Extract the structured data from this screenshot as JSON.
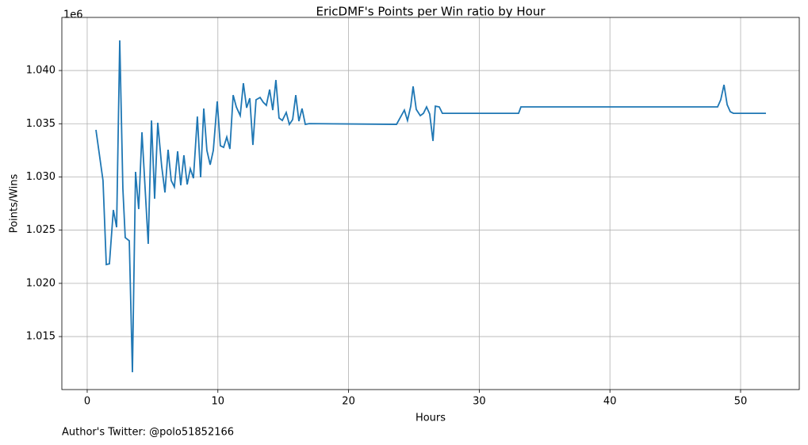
{
  "chart_data": {
    "type": "line",
    "title": "EricDMF's Points per Win ratio by Hour",
    "xlabel": "Hours",
    "ylabel": "Points/Wins",
    "y_offset_text": "1e6",
    "footnote": "Author's Twitter: @polo51852166",
    "grid": true,
    "xlim": [
      -1.94,
      54.49
    ],
    "ylim": [
      1.01002,
      1.04499
    ],
    "xticks": [
      0,
      10,
      20,
      30,
      40,
      50
    ],
    "yticks": [
      {
        "value": 1.015,
        "label": "1.015"
      },
      {
        "value": 1.02,
        "label": "1.020"
      },
      {
        "value": 1.025,
        "label": "1.025"
      },
      {
        "value": 1.03,
        "label": "1.030"
      },
      {
        "value": 1.035,
        "label": "1.035"
      },
      {
        "value": 1.04,
        "label": "1.040"
      }
    ],
    "x": [
      0.67,
      1.21,
      1.46,
      1.7,
      2.0,
      2.25,
      2.49,
      2.73,
      2.91,
      3.22,
      3.46,
      3.7,
      3.94,
      4.19,
      4.67,
      4.92,
      5.16,
      5.4,
      5.7,
      5.95,
      6.19,
      6.43,
      6.67,
      6.92,
      7.16,
      7.4,
      7.65,
      7.89,
      8.13,
      8.43,
      8.68,
      8.92,
      9.16,
      9.41,
      9.65,
      9.95,
      10.19,
      10.44,
      10.68,
      10.92,
      11.17,
      11.41,
      11.71,
      11.95,
      12.2,
      12.44,
      12.68,
      12.92,
      13.23,
      13.47,
      13.71,
      13.96,
      14.2,
      14.44,
      14.68,
      14.93,
      15.23,
      15.47,
      15.72,
      15.96,
      16.2,
      16.44,
      16.69,
      16.99,
      23.67,
      23.97,
      24.27,
      24.51,
      24.76,
      24.94,
      25.18,
      25.49,
      25.73,
      25.97,
      26.21,
      26.46,
      26.64,
      26.94,
      27.18,
      33.01,
      33.19,
      48.24,
      48.48,
      48.73,
      48.97,
      49.21,
      49.45,
      51.94
    ],
    "series": [
      {
        "name": "Points/Wins",
        "color": "#1f77b4",
        "values": [
          1.03442,
          1.02966,
          1.02177,
          1.02184,
          1.0269,
          1.02527,
          1.04283,
          1.02891,
          1.0243,
          1.024,
          1.01165,
          1.03048,
          1.02698,
          1.0342,
          1.02371,
          1.03531,
          1.02795,
          1.03509,
          1.031,
          1.02854,
          1.03256,
          1.02966,
          1.02906,
          1.03241,
          1.02921,
          1.03204,
          1.02929,
          1.03077,
          1.02988,
          1.03568,
          1.02996,
          1.03643,
          1.03249,
          1.03115,
          1.03249,
          1.0371,
          1.03293,
          1.03278,
          1.03375,
          1.03263,
          1.03769,
          1.03658,
          1.03576,
          1.03881,
          1.0365,
          1.0374,
          1.03301,
          1.03725,
          1.03747,
          1.03702,
          1.03673,
          1.03821,
          1.03628,
          1.03911,
          1.03554,
          1.03531,
          1.03606,
          1.03494,
          1.03539,
          1.03769,
          1.03524,
          1.03643,
          1.03494,
          1.03501,
          1.03494,
          1.03561,
          1.03628,
          1.03531,
          1.03665,
          1.03851,
          1.03635,
          1.03576,
          1.03598,
          1.03658,
          1.03591,
          1.03338,
          1.03665,
          1.03658,
          1.03598,
          1.03598,
          1.03658,
          1.03658,
          1.03725,
          1.03866,
          1.0368,
          1.03613,
          1.03598,
          1.03598
        ]
      }
    ]
  }
}
